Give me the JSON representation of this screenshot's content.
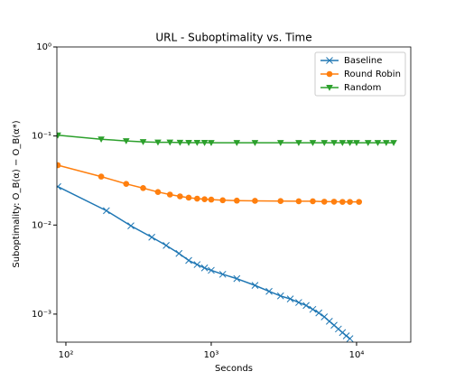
{
  "chart_data": {
    "type": "line",
    "title": "URL - Suboptimality vs. Time",
    "xlabel": "Seconds",
    "ylabel": "Suboptimality: O_B(α) − O_B(α*)",
    "xscale": "log",
    "yscale": "log",
    "xlim": [
      86.7,
      23600
    ],
    "ylim": [
      0.000484,
      1
    ],
    "xticks": [
      {
        "value": 100,
        "label": "10²"
      },
      {
        "value": 1000,
        "label": "10³"
      },
      {
        "value": 10000,
        "label": "10⁴"
      }
    ],
    "yticks": [
      {
        "value": 0.001,
        "label": "10⁻³"
      },
      {
        "value": 0.01,
        "label": "10⁻²"
      },
      {
        "value": 0.1,
        "label": "10⁻¹"
      },
      {
        "value": 1,
        "label": "10⁰"
      }
    ],
    "legend": "upper right",
    "series": [
      {
        "name": "Baseline",
        "color": "#1f77b4",
        "marker": "x",
        "x": [
          88,
          190,
          280,
          390,
          490,
          600,
          700,
          800,
          900,
          1000,
          1200,
          1500,
          2000,
          2500,
          3000,
          3500,
          4000,
          4500,
          5000,
          5500,
          6000,
          6500,
          7000,
          7500,
          8000,
          8500,
          9000
        ],
        "values": [
          0.027,
          0.0145,
          0.0098,
          0.0073,
          0.0059,
          0.0048,
          0.004,
          0.0036,
          0.0033,
          0.0031,
          0.0028,
          0.0025,
          0.0021,
          0.0018,
          0.0016,
          0.00148,
          0.00135,
          0.00125,
          0.00113,
          0.00103,
          0.00093,
          0.00083,
          0.00075,
          0.00068,
          0.00062,
          0.00057,
          0.00053
        ]
      },
      {
        "name": "Round Robin",
        "color": "#ff7f0e",
        "marker": "o",
        "x": [
          88,
          175,
          260,
          340,
          430,
          520,
          610,
          700,
          800,
          900,
          1000,
          1200,
          1500,
          2000,
          3000,
          4000,
          5000,
          6000,
          7000,
          8000,
          9000,
          10400
        ],
        "values": [
          0.047,
          0.035,
          0.029,
          0.026,
          0.0235,
          0.022,
          0.021,
          0.0203,
          0.0198,
          0.0195,
          0.0193,
          0.019,
          0.0188,
          0.0187,
          0.0186,
          0.0185,
          0.0185,
          0.0183,
          0.0183,
          0.0182,
          0.0182,
          0.0182
        ]
      },
      {
        "name": "Random",
        "color": "#2ca02c",
        "marker": "v",
        "x": [
          88,
          175,
          260,
          340,
          430,
          520,
          610,
          700,
          800,
          900,
          1000,
          1500,
          2000,
          3000,
          4000,
          5000,
          6000,
          7000,
          8000,
          9000,
          10000,
          12000,
          14000,
          16000,
          18000
        ],
        "values": [
          0.102,
          0.092,
          0.088,
          0.086,
          0.085,
          0.085,
          0.0845,
          0.0843,
          0.0842,
          0.0841,
          0.084,
          0.084,
          0.084,
          0.084,
          0.084,
          0.084,
          0.084,
          0.084,
          0.084,
          0.084,
          0.084,
          0.084,
          0.084,
          0.084,
          0.084
        ]
      }
    ]
  }
}
